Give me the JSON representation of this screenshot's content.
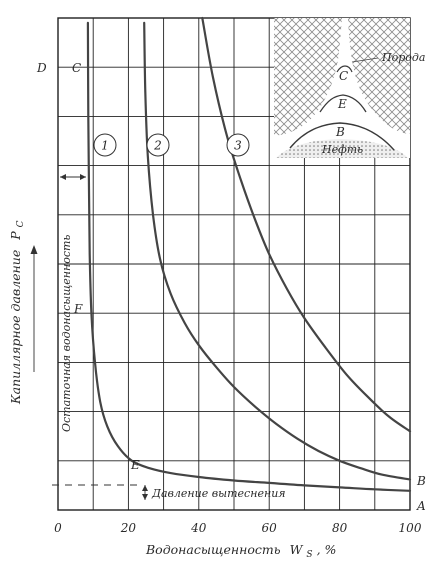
{
  "chart_data": {
    "type": "line",
    "xlabel": "Водонасыщенность",
    "xlabel_symbol": "W",
    "xlabel_subscript": "S",
    "xlabel_unit": ", %",
    "ylabel": "Капиллярное давление",
    "ylabel_symbol": "P",
    "ylabel_subscript": "C",
    "xlim": [
      0,
      100
    ],
    "ylim": [
      0,
      10
    ],
    "x_ticks": [
      "0",
      "20",
      "40",
      "60",
      "80",
      "100"
    ],
    "grid": true,
    "series": [
      {
        "name": "1",
        "x": [
          8.5,
          8.6,
          8.8,
          9.0,
          9.5,
          10.5,
          12,
          14,
          17,
          21,
          26,
          32,
          40,
          50,
          60,
          70,
          80,
          90,
          100
        ],
        "y": [
          9.9,
          8.0,
          6.5,
          5.2,
          4.0,
          3.0,
          2.2,
          1.7,
          1.3,
          1.0,
          0.85,
          0.75,
          0.67,
          0.6,
          0.55,
          0.5,
          0.46,
          0.42,
          0.39
        ]
      },
      {
        "name": "2",
        "x": [
          24.5,
          24.8,
          25.5,
          27,
          29,
          32,
          36,
          40,
          45,
          50,
          56,
          62,
          68,
          74,
          80,
          86,
          92,
          100
        ],
        "y": [
          9.9,
          8.5,
          7.2,
          6.0,
          5.1,
          4.4,
          3.8,
          3.35,
          2.9,
          2.5,
          2.1,
          1.75,
          1.45,
          1.2,
          1.0,
          0.85,
          0.72,
          0.62
        ]
      },
      {
        "name": "3",
        "x": [
          41,
          44,
          48,
          52,
          56,
          60,
          65,
          70,
          76,
          82,
          88,
          94,
          100
        ],
        "y": [
          10.0,
          8.8,
          7.6,
          6.7,
          5.9,
          5.2,
          4.5,
          3.9,
          3.3,
          2.75,
          2.3,
          1.9,
          1.6
        ]
      }
    ],
    "point_labels": [
      "D",
      "C",
      "F",
      "E",
      "B",
      "A"
    ],
    "annotations": {
      "residual_saturation": "Остаточная водонасыщенность",
      "displacement_pressure": "Давление вытеснения"
    },
    "inset": {
      "rock": "Порода",
      "oil": "Нефть",
      "letters": [
        "C",
        "E",
        "B"
      ]
    }
  }
}
